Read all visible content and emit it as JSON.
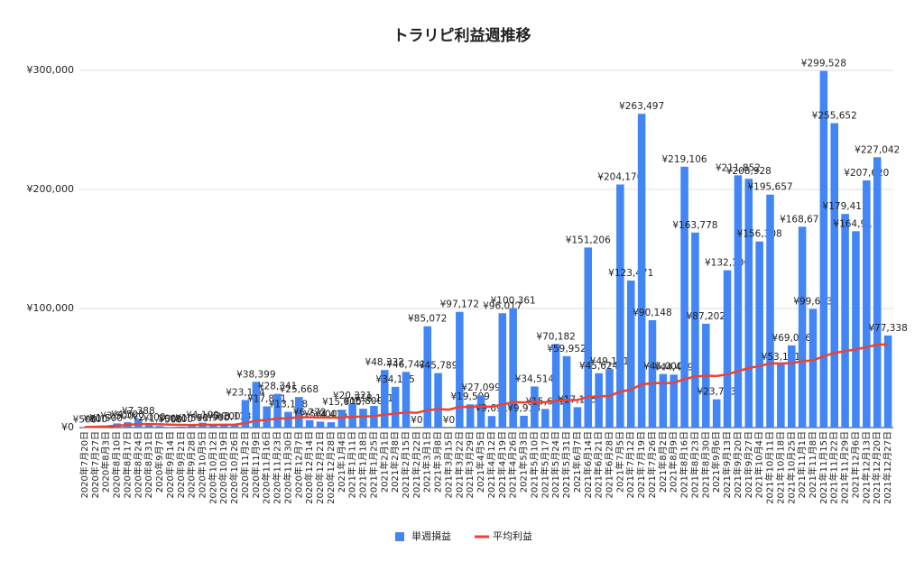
{
  "chart_data": {
    "type": "bar",
    "title": "トラリピ利益週推移",
    "categories": [
      "2020年7月20日",
      "2020年7月27日",
      "2020年8月3日",
      "2020年8月10日",
      "2020年8月17日",
      "2020年8月24日",
      "2020年8月31日",
      "2020年9月7日",
      "2020年9月14日",
      "2020年9月21日",
      "2020年9月28日",
      "2020年10月5日",
      "2020年10月12日",
      "2020年10月19日",
      "2020年10月26日",
      "2020年11月2日",
      "2020年11月9日",
      "2020年11月16日",
      "2020年11月23日",
      "2020年11月30日",
      "2020年12月7日",
      "2020年12月14日",
      "2020年12月21日",
      "2020年12月28日",
      "2021年1月4日",
      "2021年1月11日",
      "2021年1月18日",
      "2021年1月25日",
      "2021年2月1日",
      "2021年2月8日",
      "2021年2月15日",
      "2021年2月22日",
      "2021年3月1日",
      "2021年3月8日",
      "2021年3月15日",
      "2021年3月22日",
      "2021年3月29日",
      "2021年4月5日",
      "2021年4月12日",
      "2021年4月19日",
      "2021年4月26日",
      "2021年5月3日",
      "2021年5月10日",
      "2021年5月17日",
      "2021年5月24日",
      "2021年5月31日",
      "2021年6月7日",
      "2021年6月14日",
      "2021年6月21日",
      "2021年6月28日",
      "2021年7月5日",
      "2021年7月12日",
      "2021年7月19日",
      "2021年7月26日",
      "2021年8月2日",
      "2021年8月9日",
      "2021年8月16日",
      "2021年8月23日",
      "2021年8月30日",
      "2021年9月6日",
      "2021年9月13日",
      "2021年9月20日",
      "2021年9月27日",
      "2021年10月4日",
      "2021年10月11日",
      "2021年10月18日",
      "2021年10月25日",
      "2021年11月1日",
      "2021年11月8日",
      "2021年11月15日",
      "2021年11月22日",
      "2021年11月29日",
      "2021年12月6日",
      "2021年12月13日",
      "2021年12月20日",
      "2021年12月27日"
    ],
    "series": [
      {
        "name": "単週損益",
        "color": "#4285f4",
        "values": [
          500,
          800,
          1500,
          3500,
          4500,
          7388,
          2100,
          1300,
          500,
          800,
          1500,
          4100,
          1900,
          3100,
          3113,
          23124,
          38399,
          17811,
          28341,
          13158,
          25668,
          6272,
          5000,
          4475,
          15000,
          20321,
          15800,
          18161,
          48332,
          34185,
          46741,
          0,
          85072,
          45789,
          0,
          97172,
          19509,
          27099,
          9691,
          96017,
          100361,
          9918,
          34514,
          15681,
          70182,
          59952,
          17125,
          151206,
          45624,
          49151,
          204170,
          123471,
          263497,
          90148,
          45000,
          44499,
          219106,
          163778,
          87202,
          23723,
          132100,
          211852,
          208928,
          156308,
          195657,
          53151,
          69026,
          168671,
          99633,
          299528,
          255652,
          179412,
          164911,
          207620,
          227042,
          77338
        ],
        "value_labels": [
          "¥500",
          "¥800",
          "¥1,500",
          "¥3,500",
          "¥4,500",
          "¥7,388",
          "¥2,100",
          "¥1,300",
          "¥500",
          "¥800",
          "¥1,500",
          "¥4,100",
          "¥1,900",
          "¥3,100",
          "¥3,113",
          "¥23,124",
          "¥38,399",
          "¥17,811",
          "¥28,341",
          "¥13,158",
          "¥25,668",
          "¥6,272",
          "¥5,000",
          "¥4,475",
          "¥15,000",
          "¥20,321",
          "¥15,800",
          "¥18,161",
          "¥48,332",
          "¥34,185",
          "¥46,741",
          "¥0",
          "¥85,072",
          "¥45,789",
          "¥0",
          "¥97,172",
          "¥19,509",
          "¥27,099",
          "¥9,691",
          "¥96,017",
          "¥100,361",
          "¥9,918",
          "¥34,514",
          "¥15,681",
          "¥70,182",
          "¥59,952",
          "¥17,125",
          "¥151,206",
          "¥45,624",
          "¥49,151",
          "¥204,170",
          "¥123,471",
          "¥263,497",
          "¥90,148",
          "¥45,000",
          "¥44,499",
          "¥219,106",
          "¥163,778",
          "¥87,202",
          "¥23,723",
          "¥132,100",
          "¥211,852",
          "¥208,928",
          "¥156,308",
          "¥195,657",
          "¥53,151",
          "¥69,026",
          "¥168,671",
          "¥99,633",
          "¥299,528",
          "¥255,652",
          "¥179,412",
          "¥164,911",
          "¥207,620",
          "¥227,042",
          "¥77,338"
        ]
      },
      {
        "name": "平均利益",
        "color": "#ea4335",
        "type": "line",
        "values": [
          500,
          650,
          930,
          1570,
          2160,
          3030,
          2900,
          2700,
          2450,
          2280,
          2210,
          2370,
          2330,
          2390,
          2440,
          3730,
          5770,
          6440,
          7590,
          7870,
          8720,
          8610,
          8450,
          8290,
          8560,
          9010,
          9260,
          9580,
          10910,
          11690,
          12820,
          12420,
          14620,
          15540,
          15090,
          17370,
          17430,
          17690,
          17480,
          19450,
          21420,
          21150,
          21460,
          21320,
          22410,
          23230,
          23100,
          25770,
          26170,
          26630,
          30110,
          31910,
          36280,
          37270,
          37410,
          37540,
          40730,
          42850,
          43600,
          43270,
          44720,
          47420,
          49980,
          51650,
          53860,
          53850,
          54080,
          55760,
          56400,
          59870,
          62630,
          64250,
          65630,
          67550,
          69680,
          69780
        ]
      }
    ],
    "ylim": [
      0,
      300000
    ],
    "yticks": [
      {
        "value": 0,
        "label": "¥0"
      },
      {
        "value": 100000,
        "label": "¥100,000"
      },
      {
        "value": 200000,
        "label": "¥200,000"
      },
      {
        "value": 300000,
        "label": "¥300,000"
      }
    ],
    "grid": true,
    "legend": "bottom"
  }
}
